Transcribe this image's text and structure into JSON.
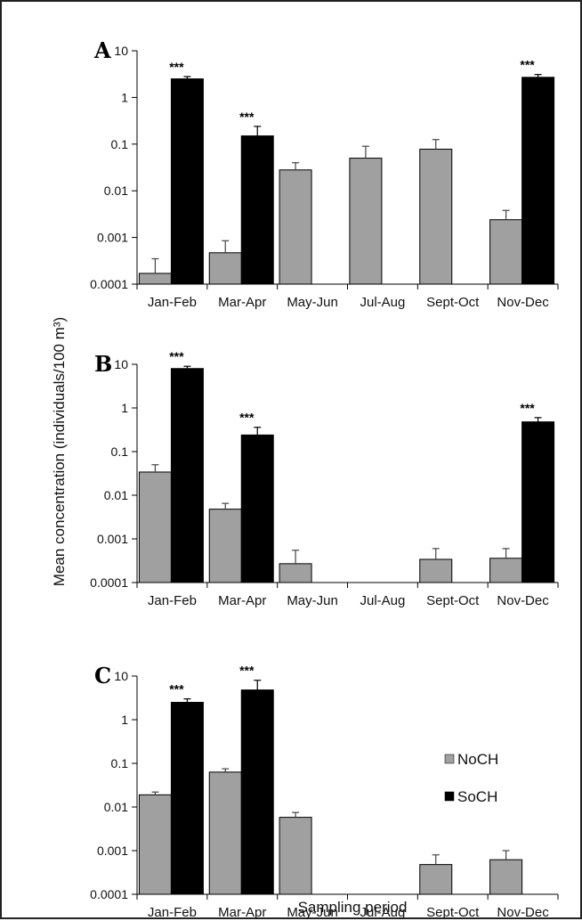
{
  "ylabel": "Mean concentration (individuals/100 m³)",
  "xlabel": "Sampling period",
  "legend": [
    {
      "name": "NoCH",
      "color": "#a0a0a0"
    },
    {
      "name": "SoCH",
      "color": "#000000"
    }
  ],
  "chart_data": [
    {
      "type": "bar",
      "panel": "A",
      "yscale": "log",
      "ylim": [
        0.0001,
        10
      ],
      "yticks": [
        "10",
        "1",
        "0.1",
        "0.01",
        "0.001",
        "0.0001"
      ],
      "categories": [
        "Jan-Feb",
        "Mar-Apr",
        "May-Jun",
        "Jul-Aug",
        "Sept-Oct",
        "Nov-Dec"
      ],
      "series": [
        {
          "name": "NoCH",
          "values": [
            0.00017,
            0.00047,
            0.028,
            0.05,
            0.078,
            0.0024
          ],
          "errors": [
            0.00035,
            0.00085,
            0.04,
            0.09,
            0.125,
            0.0038
          ]
        },
        {
          "name": "SoCH",
          "values": [
            2.5,
            0.15,
            null,
            null,
            null,
            2.7
          ],
          "errors": [
            2.8,
            0.24,
            null,
            null,
            null,
            3.1
          ]
        }
      ],
      "annotations": [
        "***",
        "***",
        "***"
      ],
      "annotation_categories": [
        "Jan-Feb",
        "Mar-Apr",
        "Nov-Dec"
      ]
    },
    {
      "type": "bar",
      "panel": "B",
      "yscale": "log",
      "ylim": [
        0.0001,
        10
      ],
      "yticks": [
        "10",
        "1",
        "0.1",
        "0.01",
        "0.001",
        "0.0001"
      ],
      "categories": [
        "Jan-Feb",
        "Mar-Apr",
        "May-Jun",
        "Jul-Aug",
        "Sept-Oct",
        "Nov-Dec"
      ],
      "series": [
        {
          "name": "NoCH",
          "values": [
            0.034,
            0.0048,
            0.00027,
            null,
            0.00034,
            0.00036
          ],
          "errors": [
            0.05,
            0.0065,
            0.00055,
            null,
            0.0006,
            0.0006
          ]
        },
        {
          "name": "SoCH",
          "values": [
            8,
            0.24,
            null,
            null,
            null,
            0.48
          ],
          "errors": [
            9,
            0.36,
            null,
            null,
            null,
            0.6
          ]
        }
      ],
      "annotations": [
        "***",
        "***",
        "***"
      ],
      "annotation_categories": [
        "Jan-Feb",
        "Mar-Apr",
        "Nov-Dec"
      ]
    },
    {
      "type": "bar",
      "panel": "C",
      "yscale": "log",
      "ylim": [
        0.0001,
        10
      ],
      "yticks": [
        "10",
        "1",
        "0.1",
        "0.01",
        "0.001",
        "0.0001"
      ],
      "categories": [
        "Jan-Feb",
        "Mar-Apr",
        "May-Jun",
        "Jul-Aug",
        "Sept-Oct",
        "Nov-Dec"
      ],
      "series": [
        {
          "name": "NoCH",
          "values": [
            0.019,
            0.063,
            0.0058,
            null,
            0.00048,
            0.00062
          ],
          "errors": [
            0.022,
            0.075,
            0.0075,
            null,
            0.0008,
            0.001
          ]
        },
        {
          "name": "SoCH",
          "values": [
            2.5,
            4.8,
            null,
            null,
            null,
            null
          ],
          "errors": [
            3.0,
            8.0,
            null,
            null,
            null,
            null
          ]
        }
      ],
      "annotations": [
        "***",
        "***"
      ],
      "annotation_categories": [
        "Jan-Feb",
        "Mar-Apr"
      ]
    }
  ]
}
